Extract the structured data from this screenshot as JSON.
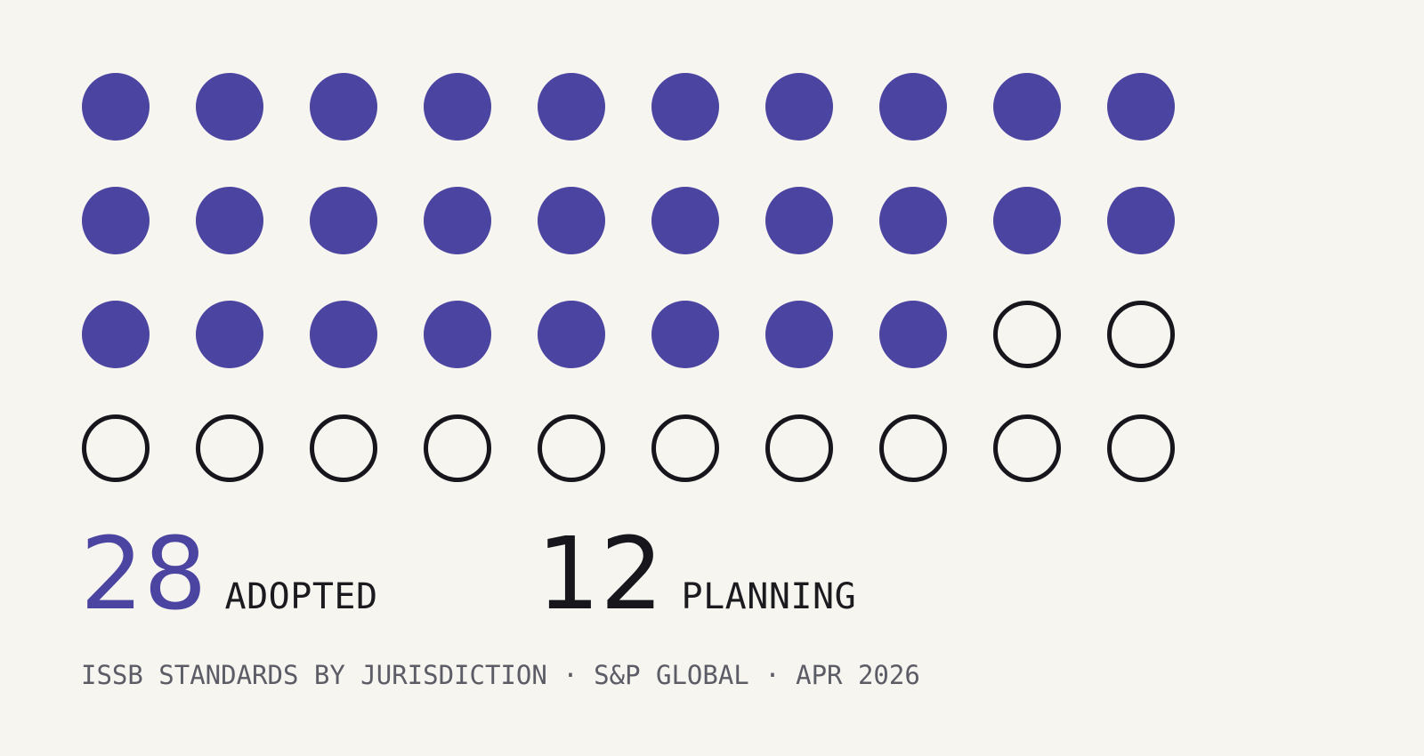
{
  "chart_data": {
    "type": "waffle",
    "total": 40,
    "series": [
      {
        "name": "ADOPTED",
        "value": 28,
        "color": "#4b44a0",
        "style": "filled"
      },
      {
        "name": "PLANNING",
        "value": 12,
        "color": "#16161c",
        "style": "outline"
      }
    ],
    "rows": 4,
    "columns": 10
  },
  "stats": {
    "adopted": {
      "number": "28",
      "label": "ADOPTED",
      "color": "#4b44a0"
    },
    "planning": {
      "number": "12",
      "label": "PLANNING",
      "color": "#16161c"
    }
  },
  "caption": "ISSB STANDARDS BY JURISDICTION · S&P GLOBAL · APR 2026"
}
